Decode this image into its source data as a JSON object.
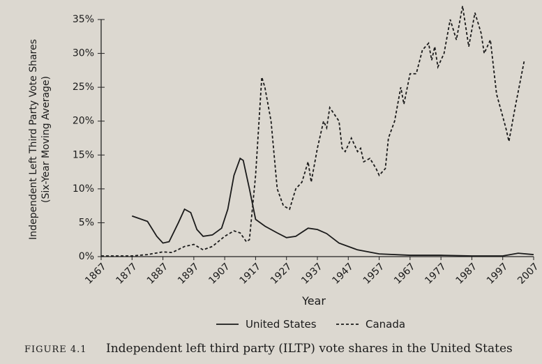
{
  "chart_data": {
    "type": "line",
    "ylabel": [
      "Independent Left Third Party Vote Shares",
      "(Six-Year Moving Average)"
    ],
    "xlabel": "Year",
    "caption": {
      "number": "FIGURE 4.1",
      "text": "Independent left third party (ILTP) vote shares in the United States"
    },
    "xlim": [
      1867,
      2007
    ],
    "xticks": [
      1867,
      1877,
      1887,
      1897,
      1907,
      1917,
      1927,
      1937,
      1947,
      1957,
      1967,
      1977,
      1987,
      1997,
      2007
    ],
    "ylim": [
      0,
      35
    ],
    "yticks": [
      {
        "value": 0,
        "label": "0%"
      },
      {
        "value": 5,
        "label": "5%"
      },
      {
        "value": 10,
        "label": "10%"
      },
      {
        "value": 15,
        "label": "15%"
      },
      {
        "value": 20,
        "label": "20%"
      },
      {
        "value": 25,
        "label": "25%"
      },
      {
        "value": 30,
        "label": "30%"
      },
      {
        "value": 35,
        "label": "35%"
      }
    ],
    "series": [
      {
        "name": "United States",
        "color": "#1a1a1a",
        "dash": false,
        "x": [
          1877,
          1882,
          1885,
          1887,
          1889,
          1892,
          1894,
          1896,
          1898,
          1900,
          1903,
          1906,
          1908,
          1910,
          1912,
          1913,
          1915,
          1917,
          1920,
          1924,
          1927,
          1930,
          1934,
          1937,
          1940,
          1944,
          1950,
          1957,
          1967,
          1977,
          1987,
          1997,
          2002,
          2007
        ],
        "values": [
          6,
          5.2,
          3,
          2,
          2.2,
          5,
          7,
          6.5,
          4,
          3,
          3.2,
          4.2,
          7,
          12,
          14.5,
          14.2,
          10,
          5.5,
          4.5,
          3.5,
          2.8,
          3,
          4.2,
          4,
          3.4,
          2,
          1,
          0.4,
          0.2,
          0.2,
          0.1,
          0.1,
          0.5,
          0.3
        ]
      },
      {
        "name": "Canada",
        "color": "#1a1a1a",
        "dash": true,
        "x": [
          1867,
          1877,
          1882,
          1887,
          1890,
          1894,
          1897,
          1900,
          1903,
          1907,
          1910,
          1912,
          1914,
          1915,
          1917,
          1919,
          1920,
          1922,
          1924,
          1926,
          1928,
          1930,
          1932,
          1934,
          1935,
          1937,
          1939,
          1940,
          1941,
          1944,
          1945,
          1946,
          1948,
          1950,
          1951,
          1952,
          1954,
          1956,
          1957,
          1959,
          1960,
          1962,
          1964,
          1965,
          1967,
          1969,
          1971,
          1973,
          1974,
          1975,
          1976,
          1978,
          1980,
          1982,
          1984,
          1986,
          1988,
          1990,
          1991,
          1993,
          1995,
          1998,
          1999,
          2001,
          2004
        ],
        "values": [
          0.1,
          0.1,
          0.3,
          0.7,
          0.6,
          1.5,
          1.8,
          1,
          1.5,
          3,
          3.8,
          3.5,
          2.2,
          2.5,
          12,
          26.5,
          25,
          20,
          10,
          7.5,
          7,
          10,
          11,
          14,
          11,
          16,
          20,
          19,
          22,
          20,
          16,
          15.5,
          17.5,
          15.5,
          16,
          14,
          14.5,
          13,
          12,
          13,
          17.5,
          20,
          25,
          22.5,
          27,
          27,
          30.5,
          31.5,
          29,
          31,
          28,
          30,
          35,
          32,
          37,
          31,
          36,
          33,
          30,
          32,
          24,
          19,
          17,
          22,
          29
        ]
      }
    ]
  }
}
